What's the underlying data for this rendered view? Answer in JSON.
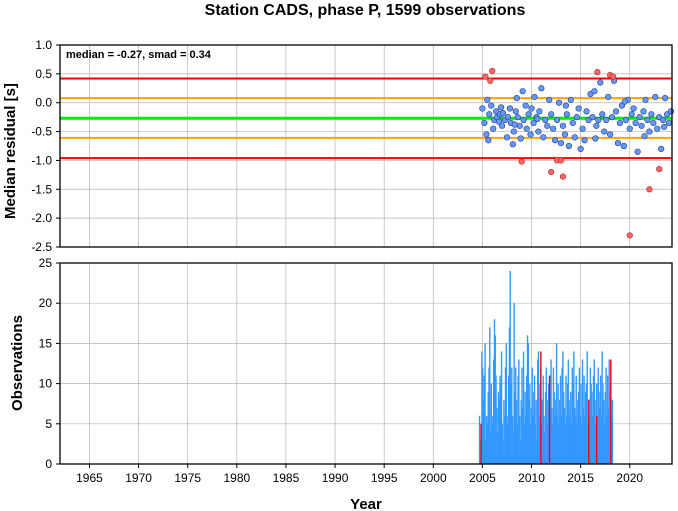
{
  "chart_data": [
    {
      "type": "scatter",
      "title": "Station CADS, phase P, 1599 observations",
      "ylabel": "Median residual [s]",
      "xlabel": "",
      "annotation": "median = -0.27, smad = 0.34",
      "xlim": [
        1962,
        2024.3
      ],
      "ylim": [
        -2.5,
        1.0
      ],
      "x_ticks": [
        "1965",
        "1970",
        "1975",
        "1980",
        "1985",
        "1990",
        "1995",
        "2000",
        "2005",
        "2010",
        "2015",
        "2020"
      ],
      "y_ticks": [
        "1.0",
        "0.5",
        "0.0",
        "-0.5",
        "-1.0",
        "-1.5",
        "-2.0",
        "-2.5"
      ],
      "grid": true,
      "reference_lines": [
        {
          "y": 0.42,
          "color": "#ff0000"
        },
        {
          "y": 0.08,
          "color": "#ffa500"
        },
        {
          "y": -0.27,
          "color": "#00ee00"
        },
        {
          "y": -0.61,
          "color": "#ffa500"
        },
        {
          "y": -0.96,
          "color": "#ff0000"
        }
      ],
      "inlier_color": "#6699ff",
      "outlier_color": "#ff6666",
      "series": [
        {
          "values": [
            [
              2005.0,
              -0.1
            ],
            [
              2005.2,
              -0.35
            ],
            [
              2005.4,
              -0.55
            ],
            [
              2005.5,
              0.05
            ],
            [
              2005.7,
              -0.2
            ],
            [
              2005.9,
              -0.05
            ],
            [
              2006.1,
              -0.45
            ],
            [
              2006.2,
              -0.3
            ],
            [
              2006.4,
              -0.15
            ],
            [
              2006.5,
              -0.25
            ],
            [
              2006.7,
              -0.33
            ],
            [
              2006.8,
              -0.2
            ],
            [
              2007.0,
              -0.4
            ],
            [
              2007.1,
              -0.18
            ],
            [
              2007.3,
              -0.3
            ],
            [
              2007.5,
              -0.6
            ],
            [
              2007.6,
              -0.25
            ],
            [
              2007.8,
              -0.1
            ],
            [
              2007.9,
              -0.35
            ],
            [
              2008.1,
              -0.72
            ],
            [
              2008.2,
              -0.5
            ],
            [
              2008.4,
              -0.15
            ],
            [
              2008.5,
              0.08
            ],
            [
              2008.6,
              -0.25
            ],
            [
              2008.8,
              -0.4
            ],
            [
              2008.9,
              -0.62
            ],
            [
              2009.1,
              0.2
            ],
            [
              2009.2,
              -0.3
            ],
            [
              2009.4,
              -0.05
            ],
            [
              2009.5,
              -0.45
            ],
            [
              2009.7,
              -0.2
            ],
            [
              2009.9,
              -0.55
            ],
            [
              2010.0,
              -0.1
            ],
            [
              2010.2,
              -0.35
            ],
            [
              2010.3,
              0.1
            ],
            [
              2010.5,
              -0.25
            ],
            [
              2010.7,
              -0.5
            ],
            [
              2010.8,
              -0.15
            ],
            [
              2011.0,
              0.25
            ],
            [
              2011.2,
              -0.6
            ],
            [
              2011.4,
              -0.3
            ],
            [
              2011.6,
              -0.4
            ],
            [
              2011.8,
              0.05
            ],
            [
              2012.0,
              -0.2
            ],
            [
              2012.2,
              -0.45
            ],
            [
              2012.4,
              -0.65
            ],
            [
              2012.6,
              -0.3
            ],
            [
              2012.8,
              0.0
            ],
            [
              2013.0,
              -0.7
            ],
            [
              2013.2,
              -0.4
            ],
            [
              2013.4,
              -0.55
            ],
            [
              2013.6,
              -0.2
            ],
            [
              2013.8,
              -0.75
            ],
            [
              2014.0,
              0.05
            ],
            [
              2014.2,
              -0.35
            ],
            [
              2014.4,
              -0.6
            ],
            [
              2014.6,
              -0.25
            ],
            [
              2014.8,
              -0.1
            ],
            [
              2015.0,
              -0.8
            ],
            [
              2015.2,
              -0.45
            ],
            [
              2015.4,
              -0.65
            ],
            [
              2015.6,
              -0.15
            ],
            [
              2015.8,
              -0.3
            ],
            [
              2016.0,
              0.15
            ],
            [
              2016.2,
              -0.25
            ],
            [
              2016.4,
              0.2
            ],
            [
              2016.6,
              -0.4
            ],
            [
              2016.8,
              -0.3
            ],
            [
              2017.0,
              0.35
            ],
            [
              2017.2,
              -0.2
            ],
            [
              2017.4,
              -0.5
            ],
            [
              2017.6,
              -0.3
            ],
            [
              2017.8,
              0.1
            ],
            [
              2018.0,
              -0.55
            ],
            [
              2018.2,
              -0.25
            ],
            [
              2018.4,
              0.38
            ],
            [
              2018.6,
              -0.15
            ],
            [
              2018.8,
              -0.7
            ],
            [
              2019.0,
              -0.35
            ],
            [
              2019.2,
              -0.05
            ],
            [
              2019.4,
              -0.75
            ],
            [
              2019.6,
              -0.3
            ],
            [
              2019.8,
              0.05
            ],
            [
              2020.0,
              -0.45
            ],
            [
              2020.2,
              -0.2
            ],
            [
              2020.4,
              -0.1
            ],
            [
              2020.6,
              -0.35
            ],
            [
              2020.8,
              -0.85
            ],
            [
              2021.0,
              -0.25
            ],
            [
              2021.2,
              -0.4
            ],
            [
              2021.4,
              -0.15
            ],
            [
              2021.6,
              0.05
            ],
            [
              2021.8,
              -0.3
            ],
            [
              2022.0,
              -0.5
            ],
            [
              2022.2,
              -0.2
            ],
            [
              2022.4,
              -0.35
            ],
            [
              2022.6,
              0.1
            ],
            [
              2022.8,
              -0.45
            ],
            [
              2023.0,
              -0.25
            ],
            [
              2023.2,
              -0.8
            ],
            [
              2023.4,
              -0.3
            ],
            [
              2023.6,
              0.08
            ],
            [
              2023.8,
              -0.2
            ],
            [
              2024.0,
              -0.35
            ],
            [
              2024.2,
              -0.15
            ],
            [
              2005.6,
              -0.65
            ],
            [
              2006.9,
              -0.08
            ],
            [
              2008.3,
              -0.38
            ],
            [
              2010.6,
              -0.28
            ],
            [
              2013.5,
              -0.05
            ],
            [
              2016.5,
              -0.62
            ],
            [
              2019.5,
              0.02
            ],
            [
              2021.5,
              -0.58
            ],
            [
              2023.5,
              -0.42
            ]
          ]
        },
        {
          "values": [
            [
              2005.3,
              0.45
            ],
            [
              2005.8,
              0.38
            ],
            [
              2006.0,
              0.55
            ],
            [
              2009.0,
              -1.02
            ],
            [
              2012.0,
              -1.2
            ],
            [
              2012.6,
              -1.0
            ],
            [
              2013.0,
              -1.0
            ],
            [
              2013.2,
              -1.28
            ],
            [
              2016.7,
              0.53
            ],
            [
              2018.0,
              0.48
            ],
            [
              2018.3,
              0.45
            ],
            [
              2020.0,
              -2.3
            ],
            [
              2022.0,
              -1.5
            ],
            [
              2023.0,
              -1.15
            ]
          ]
        }
      ]
    },
    {
      "type": "bar",
      "ylabel": "Observations",
      "xlabel": "Year",
      "xlim": [
        1962,
        2024.3
      ],
      "ylim": [
        0,
        25
      ],
      "x_ticks": [
        "1965",
        "1970",
        "1975",
        "1980",
        "1985",
        "1990",
        "1995",
        "2000",
        "2005",
        "2010",
        "2015",
        "2020"
      ],
      "y_ticks": [
        "25",
        "20",
        "15",
        "10",
        "5",
        "0"
      ],
      "grid": true,
      "total_color": "#3399ff",
      "outlier_color": "#ff0000",
      "total_counts": {
        "start": 2004.7,
        "step": 0.08,
        "values": [
          6,
          3,
          5,
          14,
          12,
          8,
          11,
          15,
          3,
          6,
          5,
          9,
          12,
          17,
          4,
          10,
          5,
          6,
          13,
          18,
          16,
          11,
          7,
          4,
          9,
          8,
          11,
          10,
          14,
          5,
          3,
          8,
          6,
          12,
          15,
          6,
          5,
          11,
          17,
          24,
          10,
          12,
          6,
          4,
          20,
          9,
          12,
          8,
          5,
          11,
          13,
          6,
          3,
          8,
          12,
          7,
          14,
          5,
          9,
          6,
          11,
          16,
          15,
          8,
          10,
          5,
          7,
          12,
          6,
          9,
          11,
          5,
          8,
          3,
          13,
          14,
          6,
          10,
          12,
          5,
          8,
          11,
          6,
          4,
          9,
          12,
          8,
          5,
          10,
          6,
          11,
          13,
          7,
          5,
          12,
          9,
          6,
          8,
          15,
          6,
          10,
          5,
          8,
          11,
          6,
          12,
          14,
          9,
          7,
          5,
          11,
          6,
          10,
          13,
          8,
          6,
          9,
          5,
          12,
          10,
          14,
          7,
          6,
          11,
          5,
          8,
          9,
          12,
          6,
          10,
          5,
          13,
          7,
          11,
          6,
          9,
          10,
          14,
          5,
          8,
          6,
          12,
          10,
          9,
          6,
          11,
          13,
          8,
          5,
          10,
          6,
          12,
          9,
          7,
          11,
          6,
          14,
          10,
          8,
          5,
          9,
          12,
          6,
          11,
          7,
          13,
          9,
          10,
          6,
          8
        ]
      },
      "outlier_counts": {
        "start": 2004.7,
        "step": 0.08,
        "values": [
          0,
          0,
          5,
          0,
          0,
          0,
          0,
          0,
          0,
          0,
          0,
          0,
          0,
          0,
          0,
          0,
          0,
          0,
          0,
          0,
          0,
          0,
          0,
          0,
          0,
          0,
          0,
          0,
          0,
          0,
          0,
          0,
          0,
          0,
          0,
          0,
          0,
          0,
          0,
          0,
          0,
          0,
          0,
          0,
          0,
          0,
          0,
          0,
          0,
          0,
          0,
          0,
          0,
          0,
          0,
          0,
          0,
          0,
          0,
          0,
          0,
          0,
          0,
          0,
          0,
          0,
          0,
          0,
          0,
          0,
          0,
          0,
          0,
          0,
          0,
          0,
          0,
          0,
          14,
          0,
          0,
          0,
          0,
          0,
          0,
          0,
          0,
          0,
          0,
          11,
          0,
          0,
          0,
          0,
          0,
          0,
          0,
          0,
          0,
          0,
          0,
          0,
          0,
          0,
          0,
          0,
          0,
          0,
          0,
          0,
          0,
          0,
          0,
          0,
          0,
          0,
          0,
          0,
          0,
          0,
          0,
          0,
          0,
          0,
          0,
          0,
          0,
          0,
          0,
          0,
          0,
          0,
          0,
          0,
          0,
          0,
          0,
          0,
          0,
          8,
          0,
          0,
          0,
          0,
          0,
          0,
          0,
          0,
          0,
          6,
          0,
          0,
          0,
          0,
          0,
          0,
          0,
          0,
          0,
          0,
          0,
          0,
          0,
          0,
          0,
          0,
          0,
          13,
          0,
          0,
          0,
          0,
          0,
          0,
          0
        ]
      }
    }
  ]
}
